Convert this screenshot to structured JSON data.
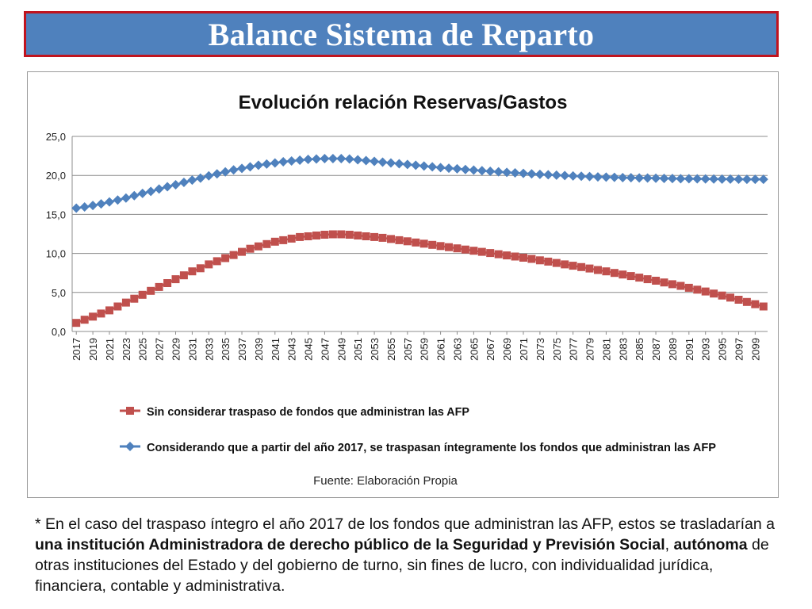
{
  "slide": {
    "title": "Balance Sistema de Reparto"
  },
  "chart_data": {
    "type": "line",
    "title": "Evolución relación Reservas/Gastos",
    "xlabel": "",
    "ylabel": "",
    "ylim": [
      0,
      25
    ],
    "yticks": [
      "0,0",
      "5,0",
      "10,0",
      "15,0",
      "20,0",
      "25,0"
    ],
    "grid": true,
    "legend_position": "bottom",
    "source": "Fuente: Elaboración Propia",
    "x": [
      2017,
      2018,
      2019,
      2020,
      2021,
      2022,
      2023,
      2024,
      2025,
      2026,
      2027,
      2028,
      2029,
      2030,
      2031,
      2032,
      2033,
      2034,
      2035,
      2036,
      2037,
      2038,
      2039,
      2040,
      2041,
      2042,
      2043,
      2044,
      2045,
      2046,
      2047,
      2048,
      2049,
      2050,
      2051,
      2052,
      2053,
      2054,
      2055,
      2056,
      2057,
      2058,
      2059,
      2060,
      2061,
      2062,
      2063,
      2064,
      2065,
      2066,
      2067,
      2068,
      2069,
      2070,
      2071,
      2072,
      2073,
      2074,
      2075,
      2076,
      2077,
      2078,
      2079,
      2080,
      2081,
      2082,
      2083,
      2084,
      2085,
      2086,
      2087,
      2088,
      2089,
      2090,
      2091,
      2092,
      2093,
      2094,
      2095,
      2096,
      2097,
      2098,
      2099,
      2100
    ],
    "x_tick_labels": [
      "2017",
      "2019",
      "2021",
      "2023",
      "2025",
      "2027",
      "2029",
      "2031",
      "2033",
      "2035",
      "2037",
      "2039",
      "2041",
      "2043",
      "2045",
      "2047",
      "2049",
      "2051",
      "2053",
      "2055",
      "2057",
      "2059",
      "2061",
      "2063",
      "2065",
      "2067",
      "2069",
      "2071",
      "2073",
      "2075",
      "2077",
      "2079",
      "2081",
      "2083",
      "2085",
      "2087",
      "2089",
      "2091",
      "2093",
      "2095",
      "2097",
      "2099"
    ],
    "series": [
      {
        "name": "Sin considerar traspaso de fondos que administran las AFP",
        "color": "#c0504d",
        "marker": "square",
        "values": [
          1.1,
          1.5,
          1.9,
          2.3,
          2.7,
          3.2,
          3.7,
          4.2,
          4.7,
          5.2,
          5.7,
          6.2,
          6.7,
          7.2,
          7.7,
          8.1,
          8.6,
          9.0,
          9.4,
          9.8,
          10.2,
          10.6,
          10.9,
          11.2,
          11.5,
          11.7,
          11.9,
          12.1,
          12.2,
          12.3,
          12.4,
          12.45,
          12.45,
          12.4,
          12.3,
          12.2,
          12.1,
          12.0,
          11.85,
          11.7,
          11.55,
          11.4,
          11.25,
          11.1,
          10.95,
          10.8,
          10.65,
          10.5,
          10.35,
          10.2,
          10.05,
          9.9,
          9.75,
          9.6,
          9.45,
          9.3,
          9.12,
          8.95,
          8.78,
          8.6,
          8.42,
          8.25,
          8.07,
          7.88,
          7.7,
          7.5,
          7.3,
          7.1,
          6.9,
          6.7,
          6.5,
          6.28,
          6.06,
          5.84,
          5.6,
          5.36,
          5.12,
          4.86,
          4.6,
          4.34,
          4.06,
          3.78,
          3.5,
          3.2
        ]
      },
      {
        "name": "Considerando que a partir del año 2017, se traspasan íntegramente los fondos que administran las AFP",
        "color": "#4f81bd",
        "marker": "diamond",
        "values": [
          15.8,
          15.95,
          16.15,
          16.35,
          16.6,
          16.85,
          17.1,
          17.4,
          17.7,
          17.95,
          18.25,
          18.55,
          18.8,
          19.1,
          19.4,
          19.65,
          19.95,
          20.2,
          20.45,
          20.7,
          20.9,
          21.1,
          21.3,
          21.45,
          21.6,
          21.75,
          21.85,
          21.95,
          22.05,
          22.1,
          22.15,
          22.15,
          22.15,
          22.1,
          22.0,
          21.9,
          21.8,
          21.7,
          21.6,
          21.5,
          21.4,
          21.3,
          21.2,
          21.1,
          21.0,
          20.92,
          20.84,
          20.76,
          20.68,
          20.6,
          20.53,
          20.46,
          20.39,
          20.32,
          20.26,
          20.2,
          20.14,
          20.08,
          20.03,
          19.98,
          19.93,
          19.89,
          19.85,
          19.81,
          19.78,
          19.75,
          19.72,
          19.7,
          19.68,
          19.66,
          19.64,
          19.62,
          19.6,
          19.58,
          19.57,
          19.56,
          19.55,
          19.54,
          19.53,
          19.52,
          19.51,
          19.5,
          19.5,
          19.5
        ]
      }
    ]
  },
  "footnote": {
    "p1": "* En el caso del traspaso íntegro el año 2017 de los fondos que administran las AFP, estos se trasladarían a ",
    "b1": "una institución Administradora de derecho público de la Seguridad y Previsión Social",
    "p2": ", ",
    "b2": "autónoma",
    "p3": " de otras instituciones del Estado y del gobierno de turno, sin fines de lucro, con individualidad jurídica, financiera, contable y administrativa."
  }
}
